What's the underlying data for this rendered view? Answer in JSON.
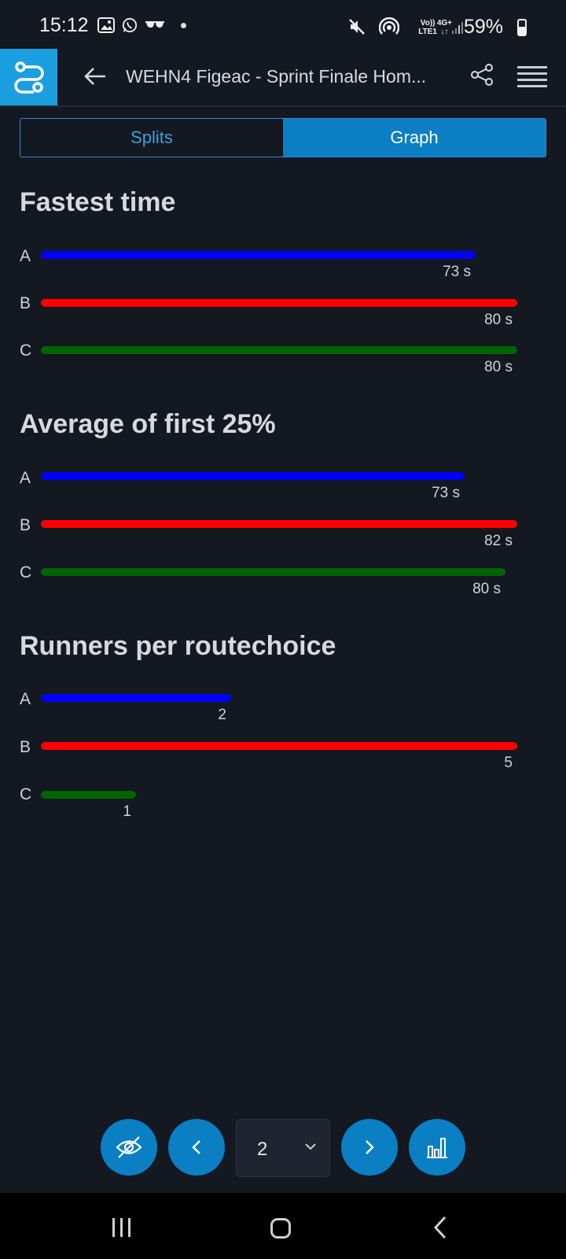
{
  "status_bar": {
    "time": "15:12",
    "network_top": "Vo))",
    "network_bottom": "LTE1",
    "network2_top": "4G+",
    "network2_bottom": "↓↑",
    "battery": "59%",
    "icons": [
      "image-icon",
      "whatsapp-icon",
      "glasses-icon",
      "mute-icon",
      "hotspot-icon",
      "signal-icon",
      "battery-icon"
    ]
  },
  "app_bar": {
    "title": "WEHN4 Figeac - Sprint Finale Hom...",
    "brand_color": "#1a9ee0"
  },
  "tabs": [
    {
      "label": "Splits",
      "active": false
    },
    {
      "label": "Graph",
      "active": true
    }
  ],
  "sections": [
    {
      "title": "Fastest time",
      "max": 80,
      "rows": [
        {
          "label": "A",
          "value": 73,
          "display": "73 s",
          "color": "#0000ff"
        },
        {
          "label": "B",
          "value": 80,
          "display": "80 s",
          "color": "#ff0000"
        },
        {
          "label": "C",
          "value": 80,
          "display": "80 s",
          "color": "#006400"
        }
      ]
    },
    {
      "title": "Average of first 25%",
      "max": 82,
      "rows": [
        {
          "label": "A",
          "value": 73,
          "display": "73 s",
          "color": "#0000ff"
        },
        {
          "label": "B",
          "value": 82,
          "display": "82 s",
          "color": "#ff0000"
        },
        {
          "label": "C",
          "value": 80,
          "display": "80 s",
          "color": "#006400"
        }
      ]
    },
    {
      "title": "Runners per routechoice",
      "max": 5,
      "rows": [
        {
          "label": "A",
          "value": 2,
          "display": "2",
          "color": "#0000ff"
        },
        {
          "label": "B",
          "value": 5,
          "display": "5",
          "color": "#ff0000"
        },
        {
          "label": "C",
          "value": 1,
          "display": "1",
          "color": "#006400"
        }
      ]
    }
  ],
  "controls": {
    "page_value": "2",
    "icons": [
      "eye-off-icon",
      "chevron-left-icon",
      "chevron-down-icon",
      "chevron-right-icon",
      "bar-chart-icon"
    ]
  }
}
